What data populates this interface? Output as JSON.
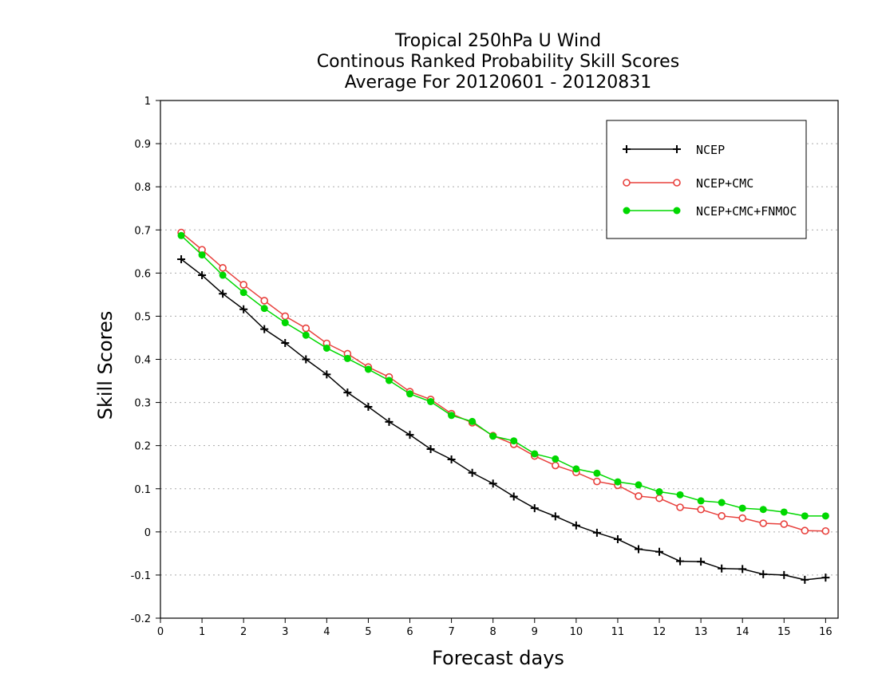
{
  "chart_data": {
    "type": "line",
    "title_lines": [
      "Tropical 250hPa U Wind",
      "Continous Ranked Probability Skill Scores",
      "Average For 20120601 - 20120831"
    ],
    "xlabel": "Forecast days",
    "ylabel": "Skill Scores",
    "xlim": [
      0,
      16.3
    ],
    "ylim": [
      -0.2,
      1
    ],
    "xticks": [
      0,
      1,
      2,
      3,
      4,
      5,
      6,
      7,
      8,
      9,
      10,
      11,
      12,
      13,
      14,
      15,
      16
    ],
    "yticks": [
      -0.2,
      -0.1,
      0,
      0.1,
      0.2,
      0.3,
      0.4,
      0.5,
      0.6,
      0.7,
      0.8,
      0.9,
      1
    ],
    "ytick_labels": [
      "-0.2",
      "-0.1",
      "0",
      "0.1",
      "0.2",
      "0.3",
      "0.4",
      "0.5",
      "0.6",
      "0.7",
      "0.8",
      "0.9",
      "1"
    ],
    "grid": "horizontal dotted",
    "legend_position": "top-right",
    "x": [
      0.5,
      1,
      1.5,
      2,
      2.5,
      3,
      3.5,
      4,
      4.5,
      5,
      5.5,
      6,
      6.5,
      7,
      7.5,
      8,
      8.5,
      9,
      9.5,
      10,
      10.5,
      11,
      11.5,
      12,
      12.5,
      13,
      13.5,
      14,
      14.5,
      15,
      15.5,
      16
    ],
    "series": [
      {
        "name": "NCEP",
        "color": "#000000",
        "marker": "plus",
        "values": [
          0.632,
          0.595,
          0.552,
          0.516,
          0.47,
          0.438,
          0.4,
          0.365,
          0.323,
          0.29,
          0.255,
          0.225,
          0.192,
          0.168,
          0.137,
          0.112,
          0.082,
          0.055,
          0.036,
          0.015,
          -0.002,
          -0.017,
          -0.04,
          -0.046,
          -0.068,
          -0.069,
          -0.085,
          -0.086,
          -0.098,
          -0.1,
          -0.111,
          -0.106
        ]
      },
      {
        "name": "NCEP+CMC",
        "color": "#e8403c",
        "marker": "open-circle",
        "values": [
          0.694,
          0.654,
          0.612,
          0.573,
          0.536,
          0.5,
          0.472,
          0.437,
          0.413,
          0.382,
          0.359,
          0.325,
          0.307,
          0.274,
          0.253,
          0.223,
          0.203,
          0.176,
          0.154,
          0.138,
          0.117,
          0.108,
          0.083,
          0.078,
          0.057,
          0.052,
          0.037,
          0.032,
          0.02,
          0.018,
          0.003,
          0.002
        ]
      },
      {
        "name": "NCEP+CMC+FNMOC",
        "color": "#00d800",
        "marker": "filled-circle",
        "values": [
          0.687,
          0.642,
          0.595,
          0.555,
          0.518,
          0.485,
          0.456,
          0.426,
          0.402,
          0.377,
          0.351,
          0.32,
          0.302,
          0.27,
          0.256,
          0.222,
          0.211,
          0.181,
          0.169,
          0.146,
          0.136,
          0.116,
          0.109,
          0.093,
          0.086,
          0.072,
          0.068,
          0.055,
          0.052,
          0.046,
          0.037,
          0.037
        ]
      }
    ]
  }
}
